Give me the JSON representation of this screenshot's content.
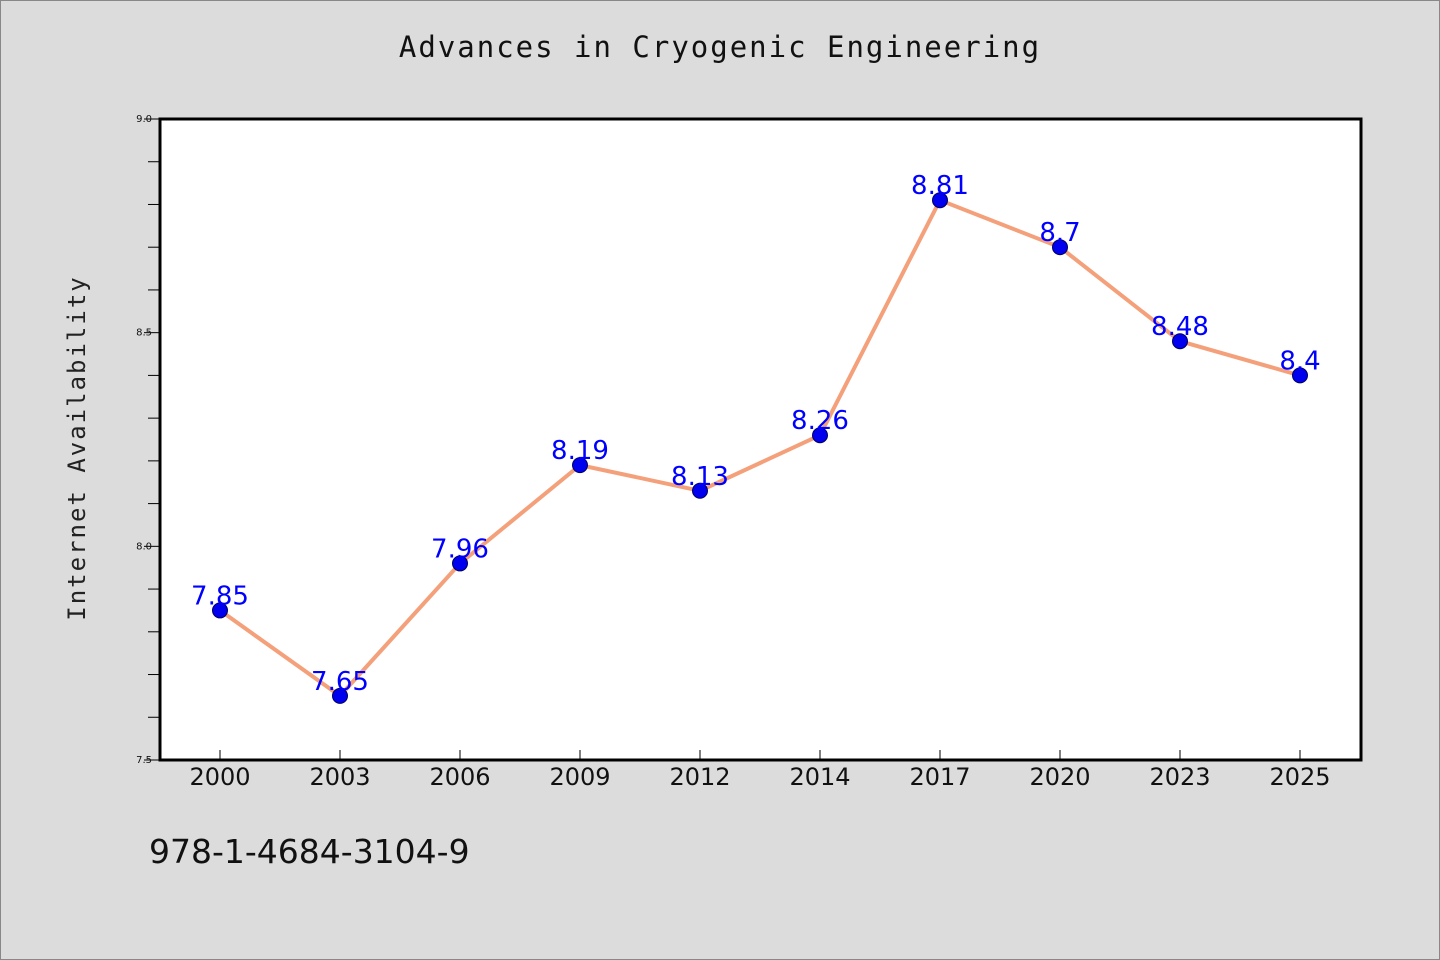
{
  "chart_data": {
    "type": "line",
    "title": "Advances in Cryogenic Engineering",
    "xlabel": "",
    "ylabel": "Internet Availability",
    "categories": [
      "2000",
      "2003",
      "2006",
      "2009",
      "2012",
      "2014",
      "2017",
      "2020",
      "2023",
      "2025"
    ],
    "series": [
      {
        "values": [
          7.85,
          7.65,
          7.96,
          8.19,
          8.13,
          8.26,
          8.81,
          8.7,
          8.48,
          8.4
        ],
        "data_labels": [
          "7.85",
          "7.65",
          "7.96",
          "8.19",
          "8.13",
          "8.26",
          "8.81",
          "8.7",
          "8.48",
          "8.4"
        ],
        "line_color": "#f4a07a",
        "marker_color": "#0000ee"
      }
    ],
    "ylim": [
      7.5,
      9.0
    ],
    "yticks": [
      "7.5",
      "8.0",
      "8.5",
      "9.0"
    ],
    "grid": false,
    "label_color": "#0000ff"
  },
  "footer": {
    "isbn": "978-1-4684-3104-9"
  }
}
